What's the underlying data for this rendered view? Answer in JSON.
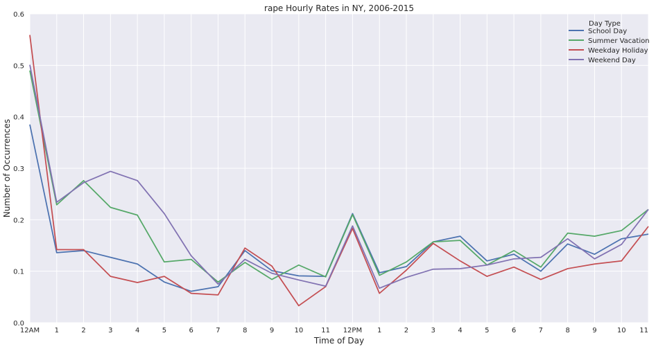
{
  "chart_data": {
    "type": "line",
    "title": "rape Hourly Rates in NY, 2006-2015",
    "xlabel": "Time of Day",
    "ylabel": "Number of Occurrences",
    "x": [
      0,
      1,
      2,
      3,
      4,
      5,
      6,
      7,
      8,
      9,
      10,
      11,
      12,
      13,
      14,
      15,
      16,
      17,
      18,
      19,
      20,
      21,
      22,
      23
    ],
    "xtick_labels": [
      "12AM",
      "1",
      "2",
      "3",
      "4",
      "5",
      "6",
      "7",
      "8",
      "9",
      "10",
      "11",
      "12PM",
      "1",
      "2",
      "3",
      "4",
      "5",
      "6",
      "7",
      "8",
      "9",
      "10",
      "11"
    ],
    "yticks": [
      0.0,
      0.1,
      0.2,
      0.3,
      0.4,
      0.5,
      0.6
    ],
    "ytick_labels": [
      "0.0",
      "0.1",
      "0.2",
      "0.3",
      "0.4",
      "0.5",
      "0.6"
    ],
    "xlim": [
      0,
      23
    ],
    "ylim": [
      0,
      0.6
    ],
    "grid": true,
    "background": "#eaeaf2",
    "legend": {
      "title": "Day Type",
      "placement": "top-right"
    },
    "series": [
      {
        "name": "School Day",
        "color": "#4c72b0",
        "values": [
          0.385,
          0.136,
          0.14,
          0.127,
          0.114,
          0.079,
          0.061,
          0.07,
          0.14,
          0.101,
          0.091,
          0.09,
          0.212,
          0.097,
          0.109,
          0.157,
          0.168,
          0.12,
          0.133,
          0.1,
          0.153,
          0.133,
          0.163,
          0.172
        ]
      },
      {
        "name": "Summer Vacation",
        "color": "#55a868",
        "values": [
          0.49,
          0.229,
          0.276,
          0.224,
          0.209,
          0.118,
          0.123,
          0.079,
          0.117,
          0.084,
          0.112,
          0.089,
          0.21,
          0.092,
          0.118,
          0.157,
          0.16,
          0.112,
          0.14,
          0.108,
          0.174,
          0.168,
          0.179,
          0.22
        ]
      },
      {
        "name": "Weekday Holiday",
        "color": "#c44e52",
        "values": [
          0.559,
          0.142,
          0.142,
          0.09,
          0.078,
          0.09,
          0.057,
          0.054,
          0.145,
          0.11,
          0.033,
          0.07,
          0.183,
          0.057,
          0.102,
          0.154,
          0.12,
          0.09,
          0.108,
          0.084,
          0.105,
          0.114,
          0.12,
          0.187
        ]
      },
      {
        "name": "Weekend Day",
        "color": "#8172b2",
        "values": [
          0.501,
          0.234,
          0.272,
          0.294,
          0.276,
          0.212,
          0.13,
          0.075,
          0.123,
          0.096,
          0.083,
          0.071,
          0.188,
          0.067,
          0.088,
          0.104,
          0.105,
          0.112,
          0.124,
          0.127,
          0.163,
          0.124,
          0.152,
          0.22
        ]
      }
    ]
  }
}
